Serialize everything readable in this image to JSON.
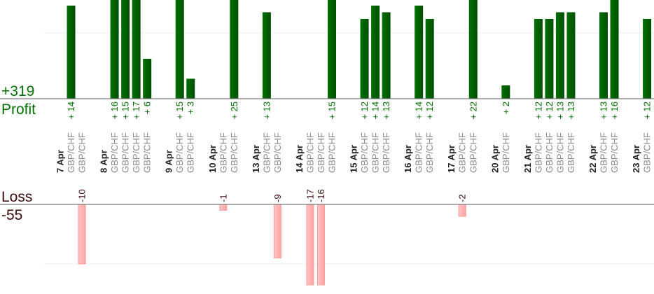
{
  "chart_data": {
    "type": "bar",
    "title": "",
    "profit": {
      "label": "Profit",
      "total": "+319",
      "color": "#006400"
    },
    "loss": {
      "label": "Loss",
      "total": "-55",
      "color": "#ffb0b0"
    },
    "pair_label": "GBP/CHF",
    "profit_ylim": [
      0,
      15
    ],
    "loss_ylim": [
      -13.5,
      0
    ],
    "profit_gridline": 10,
    "loss_gridline": -10,
    "days": [
      {
        "date": "7 Apr",
        "trades": [
          14,
          -10
        ]
      },
      {
        "date": "8 Apr",
        "trades": [
          16,
          15,
          17,
          6
        ]
      },
      {
        "date": "9 Apr",
        "trades": [
          15,
          3
        ]
      },
      {
        "date": "10 Apr",
        "trades": [
          -1,
          25
        ]
      },
      {
        "date": "13 Apr",
        "trades": [
          13,
          -9
        ]
      },
      {
        "date": "14 Apr",
        "trades": [
          -17,
          -16,
          15
        ]
      },
      {
        "date": "15 Apr",
        "trades": [
          12,
          14,
          13
        ]
      },
      {
        "date": "16 Apr",
        "trades": [
          14,
          12
        ]
      },
      {
        "date": "17 Apr",
        "trades": [
          -2,
          22
        ]
      },
      {
        "date": "20 Apr",
        "trades": [
          2
        ]
      },
      {
        "date": "21 Apr",
        "trades": [
          12,
          12,
          13,
          13
        ]
      },
      {
        "date": "22 Apr",
        "trades": [
          13,
          16
        ]
      },
      {
        "date": "23 Apr",
        "trades": [
          12
        ]
      }
    ]
  }
}
